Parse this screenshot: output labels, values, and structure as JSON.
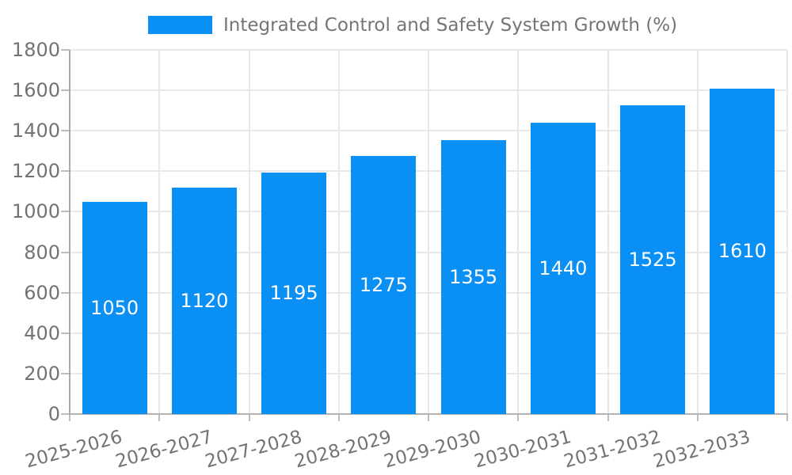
{
  "legend": {
    "label": "Integrated Control and Safety System Growth (%)"
  },
  "chart_data": {
    "type": "bar",
    "title": "",
    "legend_label": "Integrated Control and Safety System Growth (%)",
    "legend_position": "top-center",
    "categories": [
      "2025-2026",
      "2026-2027",
      "2027-2028",
      "2028-2029",
      "2029-2030",
      "2030-2031",
      "2031-2032",
      "2032-2033"
    ],
    "values": [
      1050,
      1120,
      1195,
      1275,
      1355,
      1440,
      1525,
      1610
    ],
    "xlabel": "",
    "ylabel": "",
    "ylim": [
      0,
      1800
    ],
    "yticks": [
      0,
      200,
      400,
      600,
      800,
      1000,
      1200,
      1400,
      1600,
      1800
    ],
    "grid": true,
    "x_tick_rotation_deg": 15,
    "bar_color": "#0a90f5",
    "bar_label_color": "#ffffff",
    "axis_text_color": "#737373",
    "gridline_color": "#e8e8e8"
  }
}
